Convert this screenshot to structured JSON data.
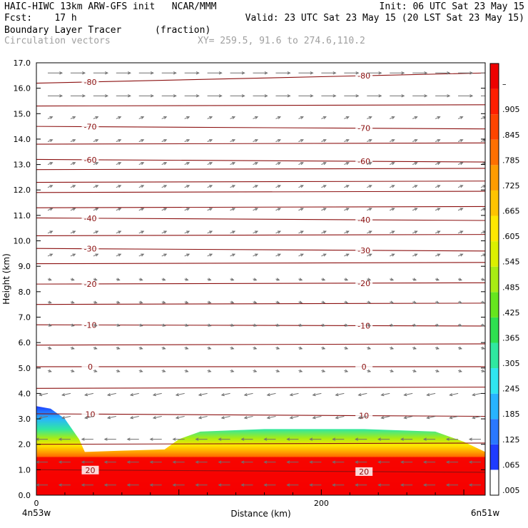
{
  "header": {
    "line1_left": "HAIC-HIWC 13km ARW-GFS init   NCAR/MMM",
    "line1_right": "Init: 06 UTC Sat 23 May 15",
    "line2_left": "Fcst:    17 h",
    "line2_right": "Valid: 23 UTC Sat 23 May 15 (20 LST Sat 23 May 15)",
    "line3_left": "Boundary Layer Tracer",
    "line3_mid": "(fraction)",
    "line4_left": "Circulation vectors",
    "line4_mid": "XY= 259.5, 91.6 to 274.6,110.2"
  },
  "chart_data": {
    "type": "heatmap",
    "xlabel": "Distance (km)",
    "ylabel": "Height (km)",
    "xlim": [
      0,
      315
    ],
    "ylim": [
      0,
      17
    ],
    "x_ticks": [
      0,
      200
    ],
    "x_tick_labels": [
      "0",
      "200"
    ],
    "x_end_labels": [
      "4n53w",
      "6n51w"
    ],
    "y_ticks": [
      0,
      1,
      2,
      3,
      4,
      5,
      6,
      7,
      8,
      9,
      10,
      11,
      12,
      13,
      14,
      15,
      16,
      17
    ],
    "y_tick_labels": [
      "0.0",
      "1.0",
      "2.0",
      "3.0",
      "4.0",
      "5.0",
      "6.0",
      "7.0",
      "8.0",
      "9.0",
      "10.0",
      "11.0",
      "12.0",
      "13.0",
      "14.0",
      "15.0",
      "16.0",
      "17.0"
    ],
    "colorbar": {
      "labels": [
        ".005",
        ".065",
        ".125",
        ".185",
        ".245",
        ".305",
        ".365",
        ".425",
        ".485",
        ".545",
        ".605",
        ".665",
        ".725",
        ".785",
        ".845",
        ".905",
        "–"
      ],
      "colors": [
        "#ffffff",
        "#1f3cff",
        "#2a78ff",
        "#28b4ff",
        "#2fe6f0",
        "#30e8a0",
        "#2ee050",
        "#66e61e",
        "#a8ec14",
        "#dcf000",
        "#ffe800",
        "#ffc400",
        "#ff9c00",
        "#ff7000",
        "#ff4400",
        "#ff1e00",
        "#ee0000"
      ]
    },
    "tracer_top_profile": [
      [
        0,
        3.5
      ],
      [
        10,
        3.4
      ],
      [
        20,
        3.0
      ],
      [
        30,
        2.2
      ],
      [
        34,
        1.7
      ],
      [
        60,
        1.75
      ],
      [
        90,
        1.8
      ],
      [
        100,
        2.2
      ],
      [
        115,
        2.5
      ],
      [
        160,
        2.6
      ],
      [
        230,
        2.6
      ],
      [
        280,
        2.5
      ],
      [
        300,
        2.1
      ],
      [
        315,
        1.7
      ]
    ],
    "isotherms": [
      {
        "label": "-80",
        "y_left": 16.2,
        "y_right": 16.6
      },
      {
        "label": "-70",
        "y_left": 14.5,
        "y_right": 14.4
      },
      {
        "label": "-60",
        "y_left": 13.2,
        "y_right": 13.1
      },
      {
        "label": "-40",
        "y_left": 10.9,
        "y_right": 10.8
      },
      {
        "label": "-30",
        "y_left": 9.7,
        "y_right": 9.6
      },
      {
        "label": "-20",
        "y_left": 8.3,
        "y_right": 8.35
      },
      {
        "label": "-10",
        "y_left": 6.7,
        "y_right": 6.65
      },
      {
        "label": "0",
        "y_left": 5.05,
        "y_right": 5.05
      },
      {
        "label": "10",
        "y_left": 3.2,
        "y_right": 3.1
      },
      {
        "label": "20",
        "y_left": 1.0,
        "y_right": 0.9
      }
    ],
    "unlabeled_isotherm_heights": [
      15.3,
      13.8,
      12.8,
      12.3,
      11.9,
      11.3,
      10.2,
      9.1,
      7.5,
      5.9,
      4.2,
      2.0
    ]
  }
}
